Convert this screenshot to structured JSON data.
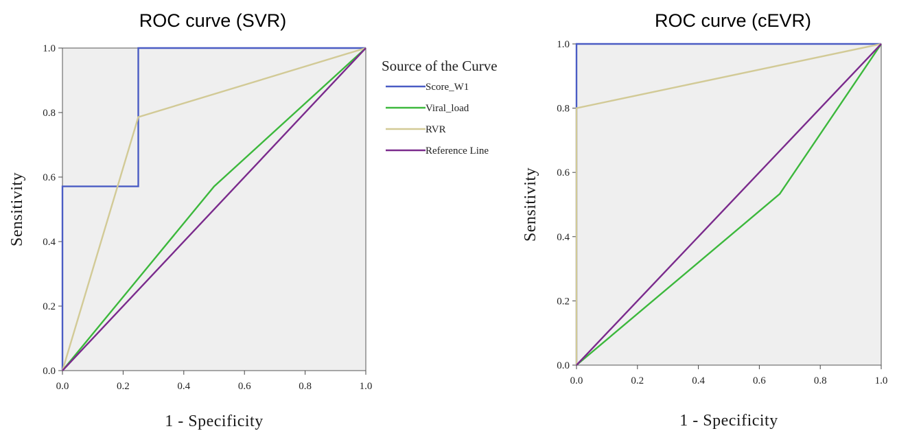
{
  "legend": {
    "title": "Source of the Curve",
    "placement": "right of first chart"
  },
  "colors": {
    "Score_W1": "#4a5cc4",
    "Viral_load": "#3cb83c",
    "RVR": "#d2ca96",
    "Reference Line": "#7a2a8c",
    "plot_background": "#efefef"
  },
  "chart_data": [
    {
      "type": "line",
      "title": "ROC curve (SVR)",
      "xlabel": "1 - Specificity",
      "ylabel": "Sensitivity",
      "xlim": [
        0,
        1
      ],
      "ylim": [
        0,
        1
      ],
      "xticks": [
        "0.0",
        "0.2",
        "0.4",
        "0.6",
        "0.8",
        "1.0"
      ],
      "yticks": [
        "0.0",
        "0.2",
        "0.4",
        "0.6",
        "0.8",
        "1.0"
      ],
      "grid": false,
      "series": [
        {
          "name": "Score_W1",
          "color": "#4a5cc4",
          "points": [
            [
              0,
              0
            ],
            [
              0,
              0.571
            ],
            [
              0.25,
              0.571
            ],
            [
              0.25,
              1.0
            ],
            [
              1.0,
              1.0
            ]
          ]
        },
        {
          "name": "Viral_load",
          "color": "#3cb83c",
          "points": [
            [
              0,
              0
            ],
            [
              0.5,
              0.571
            ],
            [
              1.0,
              1.0
            ]
          ]
        },
        {
          "name": "RVR",
          "color": "#d2ca96",
          "points": [
            [
              0,
              0
            ],
            [
              0.25,
              0.786
            ],
            [
              1.0,
              1.0
            ]
          ]
        },
        {
          "name": "Reference Line",
          "color": "#7a2a8c",
          "points": [
            [
              0,
              0
            ],
            [
              1.0,
              1.0
            ]
          ]
        }
      ]
    },
    {
      "type": "line",
      "title": "ROC curve (cEVR)",
      "xlabel": "1 - Specificity",
      "ylabel": "Sensitivity",
      "xlim": [
        0,
        1
      ],
      "ylim": [
        0,
        1
      ],
      "xticks": [
        "0.0",
        "0.2",
        "0.4",
        "0.6",
        "0.8",
        "1.0"
      ],
      "yticks": [
        "0.0",
        "0.2",
        "0.4",
        "0.6",
        "0.8",
        "1.0"
      ],
      "grid": false,
      "series": [
        {
          "name": "Score_W1",
          "color": "#4a5cc4",
          "points": [
            [
              0,
              0
            ],
            [
              0,
              1.0
            ],
            [
              1.0,
              1.0
            ]
          ]
        },
        {
          "name": "Viral_load",
          "color": "#3cb83c",
          "points": [
            [
              0,
              0
            ],
            [
              0.667,
              0.533
            ],
            [
              1.0,
              1.0
            ]
          ]
        },
        {
          "name": "RVR",
          "color": "#d2ca96",
          "points": [
            [
              0,
              0
            ],
            [
              0,
              0.8
            ],
            [
              1.0,
              1.0
            ]
          ]
        },
        {
          "name": "Reference Line",
          "color": "#7a2a8c",
          "points": [
            [
              0,
              0
            ],
            [
              1.0,
              1.0
            ]
          ]
        }
      ]
    }
  ]
}
